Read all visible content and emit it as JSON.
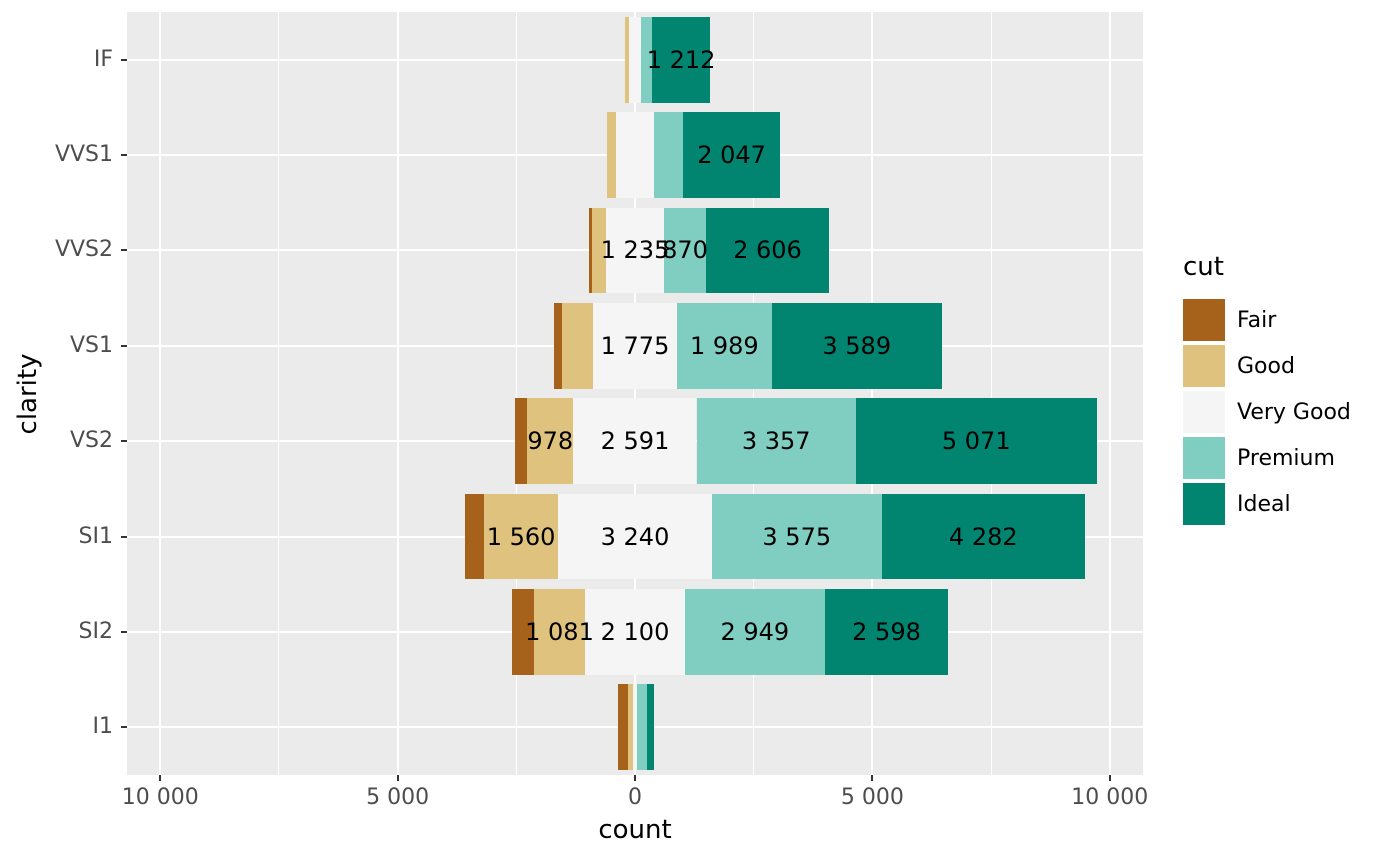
{
  "figure": {
    "background": "#FFFFFF",
    "panel_background": "#EBEBEB",
    "gridline_color": "#FFFFFF",
    "axis_text_color": "#4D4D4D",
    "bar_label_color": "#000000"
  },
  "chart_data": {
    "type": "bar",
    "subtype": "diverging-stacked-horizontal",
    "title": "",
    "xlabel": "count",
    "ylabel": "clarity",
    "legend_title": "cut",
    "legend_position": "right",
    "center_category": "Very Good",
    "grid": true,
    "categories": [
      "IF",
      "VVS1",
      "VVS2",
      "VS1",
      "VS2",
      "SI1",
      "SI2",
      "I1"
    ],
    "series": [
      {
        "name": "Fair",
        "color": "#A6611A",
        "values": [
          9,
          17,
          69,
          170,
          261,
          408,
          466,
          210
        ],
        "labels": [
          "",
          "",
          "",
          "",
          "",
          "",
          "",
          ""
        ]
      },
      {
        "name": "Good",
        "color": "#DFC27D",
        "values": [
          71,
          186,
          286,
          648,
          978,
          1560,
          1081,
          96
        ],
        "labels": [
          "",
          "",
          "",
          "",
          "978",
          "1 560",
          "1 081",
          ""
        ]
      },
      {
        "name": "Very Good",
        "color": "#F5F5F5",
        "values": [
          268,
          789,
          1235,
          1775,
          2591,
          3240,
          2100,
          84
        ],
        "labels": [
          "",
          "",
          "1 235",
          "1 775",
          "2 591",
          "3 240",
          "2 100",
          ""
        ]
      },
      {
        "name": "Premium",
        "color": "#80CDC1",
        "values": [
          230,
          616,
          870,
          1989,
          3357,
          3575,
          2949,
          205
        ],
        "labels": [
          "",
          "",
          "870",
          "1 989",
          "3 357",
          "3 575",
          "2 949",
          ""
        ]
      },
      {
        "name": "Ideal",
        "color": "#018571",
        "values": [
          1212,
          2047,
          2606,
          3589,
          5071,
          4282,
          2598,
          146
        ],
        "labels": [
          "1 212",
          "2 047",
          "2 606",
          "3 589",
          "5 071",
          "4 282",
          "2 598",
          ""
        ]
      }
    ],
    "x_ticks": [
      {
        "value": -10000,
        "label": "10 000"
      },
      {
        "value": -5000,
        "label": "5 000"
      },
      {
        "value": 0,
        "label": "0"
      },
      {
        "value": 5000,
        "label": "5 000"
      },
      {
        "value": 10000,
        "label": "10 000"
      }
    ],
    "x_minor_ticks": [
      -7500,
      -2500,
      2500,
      7500
    ],
    "xlim": [
      -10700,
      10700
    ],
    "bar_width_fraction": 0.9
  }
}
